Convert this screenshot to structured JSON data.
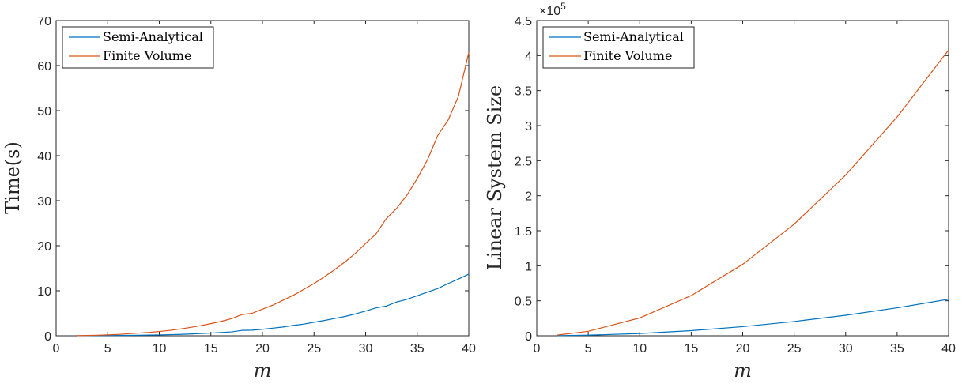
{
  "colors": {
    "semi_analytical": "#0072bd",
    "finite_volume": "#d95319",
    "axis": "#262626"
  },
  "chart_data": [
    {
      "type": "line",
      "xlabel": "m",
      "ylabel": "Time(s)",
      "xlim": [
        0,
        40
      ],
      "ylim": [
        0,
        70
      ],
      "xticks": [
        "0",
        "5",
        "10",
        "15",
        "20",
        "25",
        "30",
        "35",
        "40"
      ],
      "yticks": [
        "0",
        "10",
        "20",
        "30",
        "40",
        "50",
        "60",
        "70"
      ],
      "legend_position": "top-left",
      "grid": false,
      "series": [
        {
          "name": "Semi-Analytical",
          "color": "#0072bd",
          "x": [
            2,
            3,
            4,
            5,
            6,
            7,
            8,
            9,
            10,
            11,
            12,
            13,
            14,
            15,
            16,
            17,
            18,
            19,
            20,
            21,
            22,
            23,
            24,
            25,
            26,
            27,
            28,
            29,
            30,
            31,
            32,
            33,
            34,
            35,
            36,
            37,
            38,
            39,
            40
          ],
          "y": [
            0.01,
            0.02,
            0.03,
            0.05,
            0.07,
            0.09,
            0.12,
            0.15,
            0.19,
            0.25,
            0.31,
            0.4,
            0.5,
            0.6,
            0.72,
            0.87,
            1.2,
            1.25,
            1.45,
            1.7,
            1.95,
            2.3,
            2.6,
            3.0,
            3.4,
            3.85,
            4.3,
            4.85,
            5.5,
            6.2,
            6.6,
            7.5,
            8.1,
            8.9,
            9.7,
            10.5,
            11.6,
            12.6,
            13.7
          ]
        },
        {
          "name": "Finite Volume",
          "color": "#d95319",
          "x": [
            2,
            3,
            4,
            5,
            6,
            7,
            8,
            9,
            10,
            11,
            12,
            13,
            14,
            15,
            16,
            17,
            18,
            18.5,
            19,
            20,
            21,
            22,
            23,
            24,
            25,
            26,
            27,
            28,
            29,
            30,
            31,
            32,
            33,
            34,
            35,
            36,
            37,
            38,
            39,
            40
          ],
          "y": [
            0.02,
            0.06,
            0.12,
            0.2,
            0.3,
            0.45,
            0.6,
            0.75,
            0.95,
            1.2,
            1.5,
            1.85,
            2.25,
            2.7,
            3.2,
            3.8,
            4.7,
            4.85,
            5.0,
            5.9,
            6.8,
            7.9,
            9.0,
            10.3,
            11.6,
            13.1,
            14.7,
            16.4,
            18.3,
            20.5,
            22.6,
            26.0,
            28.3,
            31.2,
            34.9,
            39.1,
            44.5,
            47.9,
            53.2,
            62.9
          ]
        }
      ]
    },
    {
      "type": "line",
      "xlabel": "m",
      "ylabel": "Linear System Size",
      "xlim": [
        0,
        40
      ],
      "ylim": [
        0,
        450000
      ],
      "xticks": [
        "0",
        "5",
        "10",
        "15",
        "20",
        "25",
        "30",
        "35",
        "40"
      ],
      "yticks": [
        "0",
        "0.5",
        "1",
        "1.5",
        "2",
        "2.5",
        "3",
        "3.5",
        "4",
        "4.5"
      ],
      "y_exponent": {
        "base": "×10",
        "power": "5"
      },
      "legend_position": "top-left",
      "grid": false,
      "series": [
        {
          "name": "Semi-Analytical",
          "color": "#0072bd",
          "x": [
            2,
            5,
            10,
            15,
            20,
            25,
            30,
            35,
            40
          ],
          "y": [
            130,
            815,
            3260,
            7340,
            13050,
            20390,
            29360,
            39960,
            52200
          ]
        },
        {
          "name": "Finite Volume",
          "color": "#d95319",
          "x": [
            2,
            5,
            10,
            15,
            20,
            25,
            30,
            35,
            40
          ],
          "y": [
            1020,
            6380,
            25500,
            57400,
            102000,
            159400,
            229500,
            312400,
            408000
          ]
        }
      ]
    }
  ]
}
